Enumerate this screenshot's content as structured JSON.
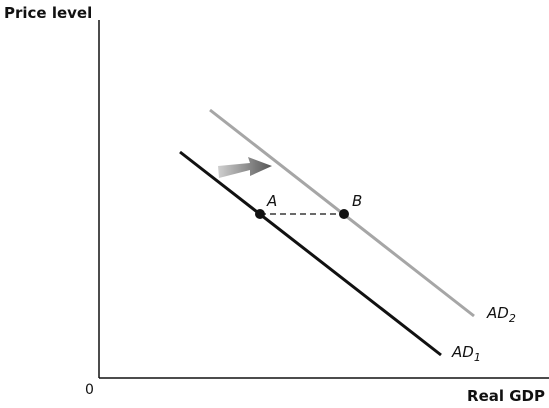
{
  "axes": {
    "y_label": "Price level",
    "x_label": "Real GDP",
    "origin": "0"
  },
  "curves": [
    {
      "name": "AD",
      "subscript": "1"
    },
    {
      "name": "AD",
      "subscript": "2"
    }
  ],
  "points": [
    {
      "label": "A"
    },
    {
      "label": "B"
    }
  ]
}
